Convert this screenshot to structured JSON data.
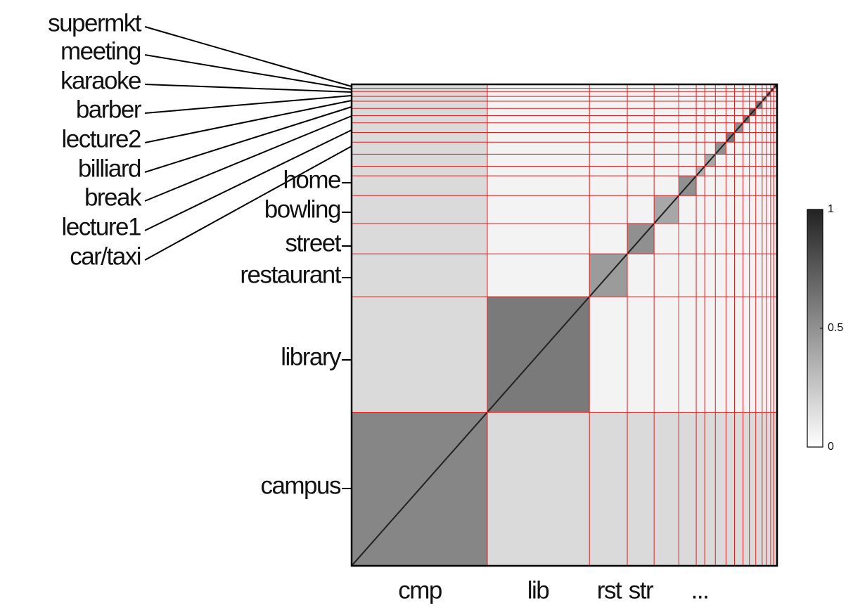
{
  "chart_data": {
    "type": "heatmap",
    "leader_labels": [
      "supermkt",
      "meeting",
      "karaoke",
      "barber",
      "lecture2",
      "billiard",
      "break",
      "lecture1",
      "car/taxi"
    ],
    "y_labels": [
      "home",
      "bowling",
      "street",
      "restaurant",
      "library",
      "campus"
    ],
    "x_labels": [
      "cmp",
      "lib",
      "rst",
      "str",
      "..."
    ],
    "colorbar": {
      "lim": [
        0,
        1
      ],
      "ticks": [
        0,
        0.5,
        1
      ]
    }
  }
}
